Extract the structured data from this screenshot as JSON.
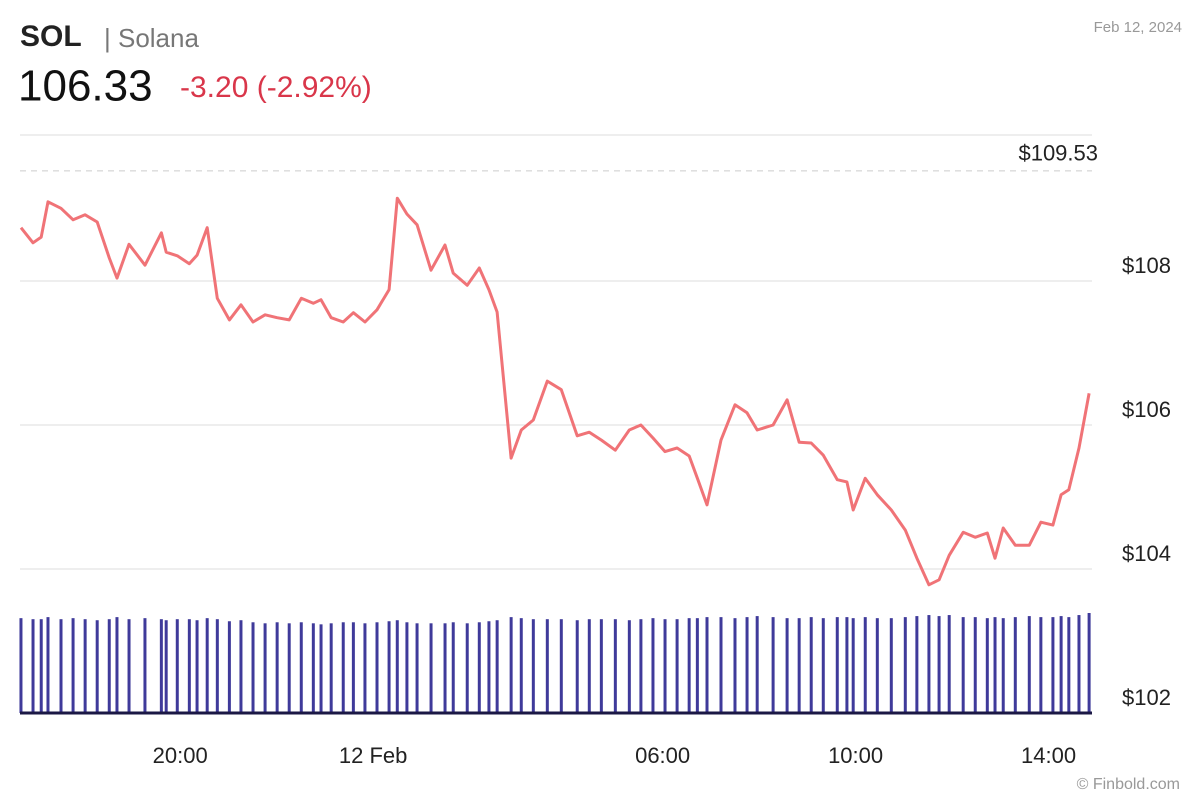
{
  "chart_data": {
    "type": "line",
    "title": "SOL",
    "subtitle": "| Solana",
    "price": 106.33,
    "change": "-3.20 (-2.92%)",
    "date": "Feb 12, 2024",
    "source": "© Finbold.com",
    "x": [
      -7.3,
      -7.05,
      -6.88,
      -6.74,
      -6.47,
      -6.22,
      -5.97,
      -5.72,
      -5.47,
      -5.31,
      -5.06,
      -4.73,
      -4.39,
      -4.29,
      -4.06,
      -3.81,
      -3.65,
      -3.44,
      -3.23,
      -2.98,
      -2.74,
      -2.49,
      -2.24,
      -1.99,
      -1.74,
      -1.49,
      -1.24,
      -1.08,
      -0.87,
      -0.62,
      -0.41,
      -0.17,
      0.08,
      0.33,
      0.5,
      0.7,
      0.91,
      1.2,
      1.49,
      1.66,
      1.95,
      2.2,
      2.4,
      2.57,
      2.86,
      3.07,
      3.32,
      3.61,
      3.9,
      4.23,
      4.48,
      4.73,
      5.02,
      5.31,
      5.55,
      5.8,
      6.05,
      6.3,
      6.55,
      6.72,
      6.92,
      7.21,
      7.5,
      7.75,
      7.96,
      8.29,
      8.58,
      8.83,
      9.08,
      9.33,
      9.62,
      9.82,
      9.95,
      10.2,
      10.45,
      10.74,
      11.03,
      11.27,
      11.52,
      11.73,
      11.94,
      12.23,
      12.48,
      12.73,
      12.89,
      13.06,
      13.31,
      13.6,
      13.84,
      14.09,
      14.26,
      14.42,
      14.63,
      14.84
    ],
    "series": [
      {
        "name": "SOL",
        "color": "#f07377",
        "values": [
          108.74,
          108.53,
          108.61,
          109.1,
          109.01,
          108.85,
          108.92,
          108.82,
          108.32,
          108.04,
          108.51,
          108.22,
          108.67,
          108.4,
          108.35,
          108.24,
          108.36,
          108.74,
          107.76,
          107.46,
          107.67,
          107.43,
          107.53,
          107.49,
          107.46,
          107.76,
          107.69,
          107.74,
          107.49,
          107.43,
          107.56,
          107.43,
          107.6,
          107.88,
          109.15,
          108.93,
          108.78,
          108.15,
          108.5,
          108.11,
          107.94,
          108.18,
          107.88,
          107.57,
          105.54,
          105.93,
          106.07,
          106.61,
          106.49,
          105.85,
          105.9,
          105.79,
          105.65,
          105.93,
          106.0,
          105.82,
          105.63,
          105.68,
          105.57,
          105.26,
          104.89,
          105.79,
          106.28,
          106.17,
          105.93,
          106.0,
          106.35,
          105.76,
          105.75,
          105.58,
          105.24,
          105.21,
          104.82,
          105.26,
          105.03,
          104.82,
          104.54,
          104.15,
          103.78,
          103.85,
          104.19,
          104.51,
          104.44,
          104.5,
          104.15,
          104.57,
          104.33,
          104.33,
          104.65,
          104.61,
          105.03,
          105.1,
          105.68,
          106.44
        ]
      },
      {
        "name": "Volume",
        "color": "#3f3a9a",
        "values": [
          92,
          91,
          91,
          93,
          91,
          92,
          91,
          90,
          91,
          93,
          91,
          92,
          91,
          90,
          91,
          91,
          90,
          92,
          91,
          89,
          90,
          88,
          87,
          88,
          87,
          88,
          87,
          86,
          87,
          88,
          88,
          87,
          88,
          89,
          90,
          88,
          87,
          87,
          87,
          88,
          87,
          88,
          89,
          90,
          93,
          92,
          91,
          91,
          91,
          90,
          91,
          91,
          91,
          90,
          91,
          92,
          91,
          91,
          92,
          92,
          93,
          93,
          92,
          93,
          94,
          93,
          92,
          92,
          93,
          92,
          93,
          93,
          92,
          93,
          92,
          92,
          93,
          94,
          95,
          94,
          95,
          93,
          93,
          92,
          93,
          92,
          93,
          94,
          93,
          93,
          94,
          93,
          95,
          97
        ]
      }
    ],
    "xlim": [
      -7.32,
      14.9
    ],
    "ylim": [
      102,
      110
    ],
    "xticks": [
      {
        "value": -4,
        "label": "20:00"
      },
      {
        "value": 0,
        "label": "12 Feb"
      },
      {
        "value": 6,
        "label": "06:00"
      },
      {
        "value": 10,
        "label": "10:00"
      },
      {
        "value": 14,
        "label": "14:00"
      }
    ],
    "yticks": [
      {
        "value": 102,
        "label": "$102"
      },
      {
        "value": 104,
        "label": "$104"
      },
      {
        "value": 106,
        "label": "$106"
      },
      {
        "value": 108,
        "label": "$108"
      }
    ],
    "reference_line": {
      "value": 109.53,
      "label": "$109.53"
    },
    "grid": true
  }
}
